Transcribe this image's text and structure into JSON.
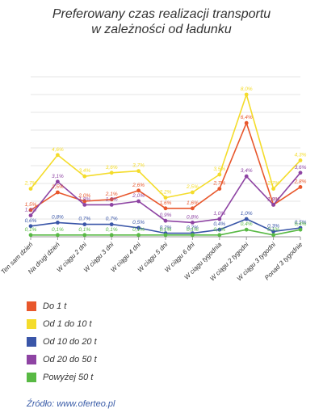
{
  "title_line1": "Preferowany czas realizacji transportu",
  "title_line2": "w zależności od ładunku",
  "source": "Źródło: www.oferteo.pl",
  "colors": {
    "grid": "#e6e6e6",
    "axis": "#9a9a9a",
    "text": "#333333"
  },
  "chart_data": {
    "type": "line",
    "categories": [
      "Ten sam dzień",
      "Na drugi dzień",
      "W ciągu 2 dni",
      "W ciągu 3 dni",
      "W ciągu 4 dni",
      "W ciągu 5 dni",
      "W ciągu 6 dni",
      "W ciągu tygodnia",
      "W ciągu 2 tygodni",
      "W ciągu 3 tygodni",
      "Ponad 3 tygodnie"
    ],
    "ylim": [
      0,
      9
    ],
    "grid": true,
    "legend_position": "bottom-left",
    "series": [
      {
        "name": "Do 1 t",
        "color": "#e8572c",
        "values": [
          1.5,
          2.5,
          2.0,
          2.1,
          2.6,
          1.6,
          1.6,
          2.7,
          6.4,
          1.8,
          2.8
        ],
        "labels": [
          "1,5%",
          "2,5%",
          "2,0%",
          "2,1%",
          "2,6%",
          "1,6%",
          "1,6%",
          "2,7%",
          "6,4%",
          "1,8%",
          "2,8%"
        ]
      },
      {
        "name": "Od 1 do 10 t",
        "color": "#f4dc2b",
        "values": [
          2.7,
          4.6,
          3.4,
          3.6,
          3.7,
          2.2,
          2.5,
          3.5,
          8.0,
          2.7,
          4.3
        ],
        "labels": [
          "2,7%",
          "4,6%",
          "3,4%",
          "3,6%",
          "3,7%",
          "2,2%",
          "2,5%",
          "3,5%",
          "8,0%",
          "2,7%",
          "4,3%"
        ]
      },
      {
        "name": "Od 10 do 20 t",
        "color": "#3a56a8",
        "values": [
          0.6,
          0.8,
          0.7,
          0.7,
          0.5,
          0.2,
          0.2,
          0.4,
          1.0,
          0.3,
          0.5
        ],
        "labels": [
          "0,6%",
          "0,8%",
          "0,7%",
          "0,7%",
          "0,5%",
          "0,2%",
          "0,2%",
          "0,4%",
          "1,0%",
          "0,3%",
          "0,5%"
        ]
      },
      {
        "name": "Od 20 do 50 t",
        "color": "#8e44a3",
        "values": [
          1.2,
          3.1,
          1.8,
          1.8,
          2.0,
          0.9,
          0.8,
          1.0,
          3.4,
          1.8,
          3.6
        ],
        "labels": [
          "1,2%",
          "3,1%",
          "1,8%",
          "1,8%",
          "2,0%",
          "0,9%",
          "0,8%",
          "1,0%",
          "3,4%",
          "1,8%",
          "3,6%"
        ]
      },
      {
        "name": "Powyżej 50 t",
        "color": "#58b944",
        "values": [
          0.1,
          0.1,
          0.1,
          0.1,
          0.1,
          0.1,
          0.1,
          0.1,
          0.4,
          0.1,
          0.4
        ],
        "labels": [
          "0,1%",
          "0,1%",
          "0,1%",
          "0,1%",
          "0,1%",
          "0,1%",
          "0,1%",
          "0,1%",
          "0,4%",
          "0,1%",
          "0,4%"
        ]
      }
    ]
  }
}
